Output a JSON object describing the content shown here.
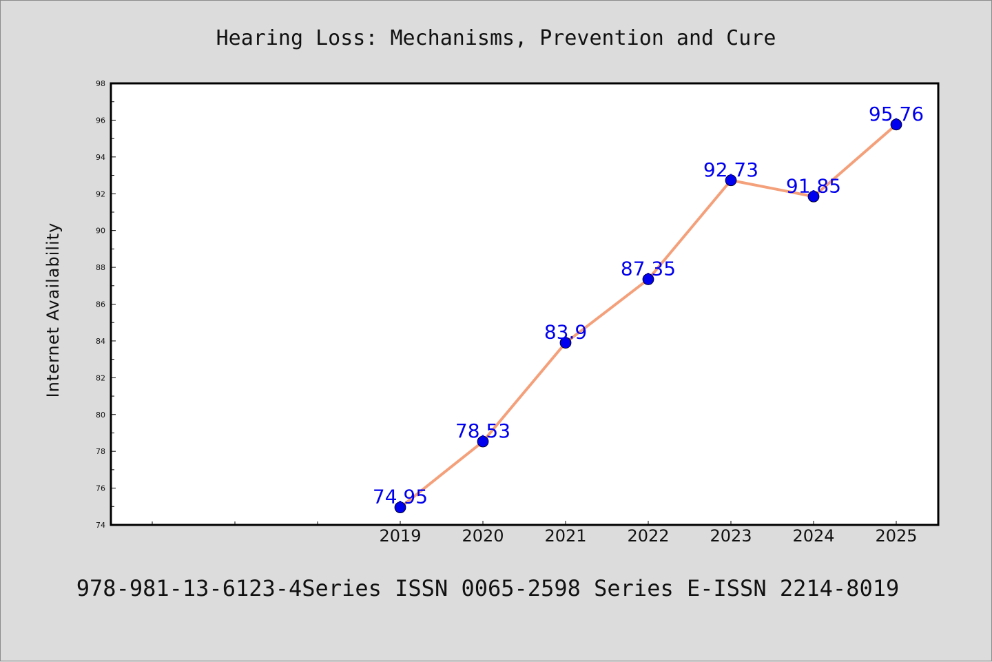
{
  "chart_data": {
    "type": "line",
    "title": "Hearing Loss: Mechanisms, Prevention and Cure",
    "xlabel": "",
    "ylabel": "Internet Availability",
    "x": [
      "2019",
      "2020",
      "2021",
      "2022",
      "2023",
      "2024",
      "2025"
    ],
    "series": [
      {
        "values": [
          74.95,
          78.53,
          83.9,
          87.35,
          92.73,
          91.85,
          95.76
        ],
        "labels": [
          "74.95",
          "78.53",
          "83.9",
          "87.35",
          "92.73",
          "91.85",
          "95.76"
        ],
        "line_color": "#f4a07a",
        "marker_color": "#0000ee"
      }
    ],
    "ylim": [
      74,
      98
    ],
    "yticks": [
      "74",
      "76",
      "78",
      "80",
      "82",
      "84",
      "86",
      "88",
      "90",
      "92",
      "94",
      "96",
      "98"
    ],
    "x_blank_slots": 3,
    "grid": false,
    "legend": "none",
    "footer": "978-981-13-6123-4Series ISSN 0065-2598 Series E-ISSN 2214-8019"
  }
}
